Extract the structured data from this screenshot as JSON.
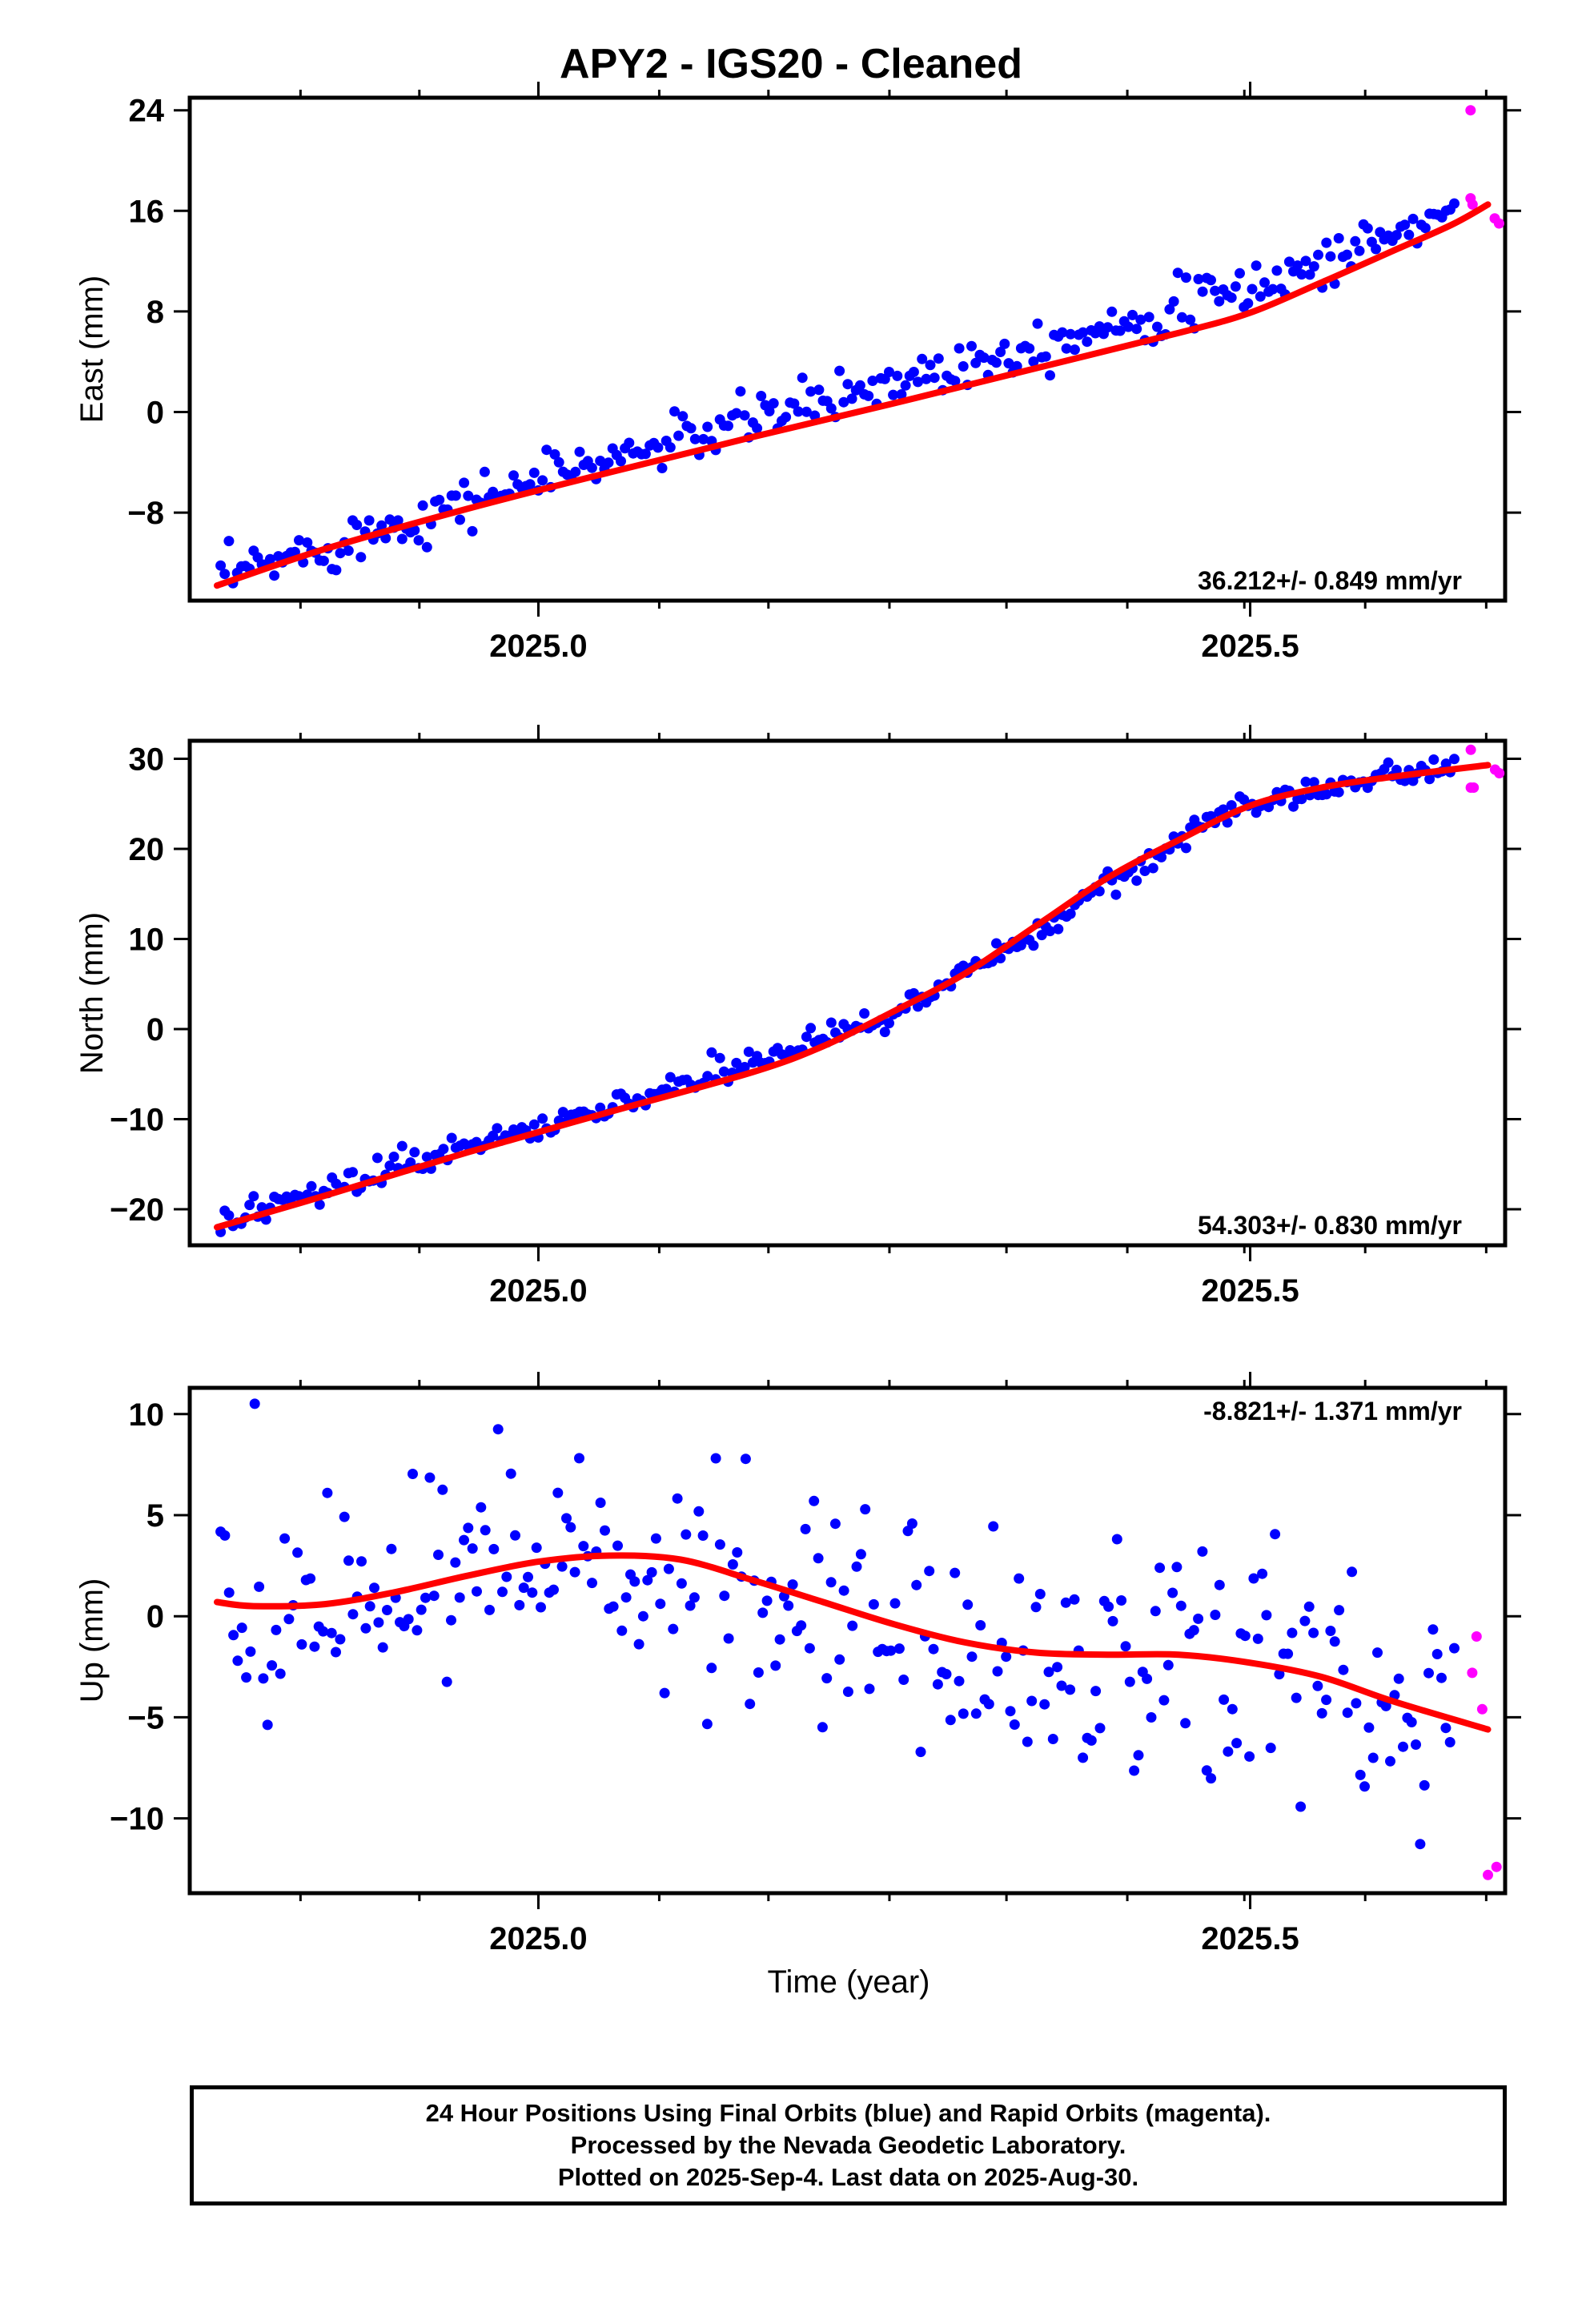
{
  "title": "APY2  - IGS20 - Cleaned",
  "xlabel": "Time (year)",
  "footer": {
    "line1": "24 Hour Positions Using Final Orbits (blue) and Rapid Orbits (magenta).",
    "line2": "Processed by the Nevada Geodetic Laboratory.",
    "line3": "Plotted on 2025-Sep-4. Last data on 2025-Aug-30."
  },
  "colors": {
    "final": "#0000ff",
    "rapid": "#ff00ff",
    "model": "#ff0000"
  },
  "chart_data": [
    {
      "type": "scatter",
      "ylabel": "East (mm)",
      "rate": "36.212+/- 0.849 mm/yr",
      "xlim": [
        2024.7551,
        2025.6791
      ],
      "ylim": [
        -15,
        25
      ],
      "xticks": [
        2025.0,
        2025.5
      ],
      "xtick_labels": [
        "2025.0",
        "2025.5"
      ],
      "yticks": [
        24,
        16,
        8,
        0,
        -8
      ],
      "ytick_labels": [
        "24",
        "16",
        "8",
        "0",
        "−8"
      ],
      "final": {
        "start": 2024.7768,
        "end": 2025.6434,
        "count": 300,
        "trend": [
          [
            2024.7768,
            -13.3
          ],
          [
            2025.0,
            -5.3
          ],
          [
            2025.25,
            2.5
          ],
          [
            2025.5,
            9.8
          ],
          [
            2025.6434,
            16.0
          ]
        ],
        "noise_mm": 1.0
      },
      "rapid": [
        [
          2025.6548,
          24.0
        ],
        [
          2025.6548,
          17.0
        ],
        [
          2025.6562,
          16.5
        ],
        [
          2025.6718,
          15.4
        ],
        [
          2025.6748,
          15.0
        ]
      ],
      "model": [
        [
          2024.7742,
          -13.8
        ],
        [
          2024.85,
          -10.9
        ],
        [
          2024.95,
          -7.7
        ],
        [
          2025.05,
          -4.8
        ],
        [
          2025.15,
          -2.0
        ],
        [
          2025.25,
          0.7
        ],
        [
          2025.35,
          3.5
        ],
        [
          2025.45,
          6.3
        ],
        [
          2025.5,
          7.9
        ],
        [
          2025.55,
          10.3
        ],
        [
          2025.6,
          12.8
        ],
        [
          2025.6416,
          14.9
        ],
        [
          2025.667,
          16.5
        ]
      ]
    },
    {
      "type": "scatter",
      "ylabel": "North (mm)",
      "rate": "54.303+/- 0.830 mm/yr",
      "xlim": [
        2024.7551,
        2025.6791
      ],
      "ylim": [
        -24,
        32
      ],
      "xticks": [
        2025.0,
        2025.5
      ],
      "xtick_labels": [
        "2025.0",
        "2025.5"
      ],
      "yticks": [
        30,
        20,
        10,
        0,
        -10,
        -20
      ],
      "ytick_labels": [
        "30",
        "20",
        "10",
        "0",
        "−10",
        "−20"
      ],
      "final": {
        "start": 2024.7768,
        "end": 2025.6434,
        "count": 300,
        "trend": [
          [
            2024.7768,
            -21.0
          ],
          [
            2024.85,
            -18.0
          ],
          [
            2024.95,
            -13.0
          ],
          [
            2025.05,
            -8.5
          ],
          [
            2025.15,
            -4.0
          ],
          [
            2025.25,
            2.0
          ],
          [
            2025.35,
            11.0
          ],
          [
            2025.45,
            21.0
          ],
          [
            2025.5,
            25.0
          ],
          [
            2025.58,
            27.5
          ],
          [
            2025.6434,
            29.0
          ]
        ],
        "noise_mm": 0.8
      },
      "rapid": [
        [
          2025.655,
          31.0
        ],
        [
          2025.655,
          26.8
        ],
        [
          2025.657,
          26.8
        ],
        [
          2025.672,
          28.8
        ],
        [
          2025.675,
          28.4
        ]
      ],
      "model": [
        [
          2024.7742,
          -22.0
        ],
        [
          2024.85,
          -18.5
        ],
        [
          2024.95,
          -13.7
        ],
        [
          2025.05,
          -9.2
        ],
        [
          2025.15,
          -4.8
        ],
        [
          2025.2,
          -1.9
        ],
        [
          2025.25,
          2.0
        ],
        [
          2025.3,
          6.2
        ],
        [
          2025.35,
          11.5
        ],
        [
          2025.4,
          16.8
        ],
        [
          2025.45,
          21.0
        ],
        [
          2025.5,
          24.8
        ],
        [
          2025.55,
          26.8
        ],
        [
          2025.6,
          28.0
        ],
        [
          2025.667,
          29.3
        ]
      ]
    },
    {
      "type": "scatter",
      "ylabel": "Up (mm)",
      "rate": "-8.821+/- 1.371 mm/yr",
      "xlim": [
        2024.7551,
        2025.6791
      ],
      "ylim": [
        -13.7,
        11.3
      ],
      "xticks": [
        2025.0,
        2025.5
      ],
      "xtick_labels": [
        "2025.0",
        "2025.5"
      ],
      "yticks": [
        10,
        5,
        0,
        -5,
        -10
      ],
      "ytick_labels": [
        "10",
        "5",
        "0",
        "−5",
        "−10"
      ],
      "final": {
        "start": 2024.7768,
        "end": 2025.6434,
        "count": 290,
        "trend": [
          [
            2024.7768,
            0.6
          ],
          [
            2024.85,
            0.8
          ],
          [
            2024.95,
            2.0
          ],
          [
            2025.05,
            3.0
          ],
          [
            2025.15,
            1.5
          ],
          [
            2025.25,
            -1.5
          ],
          [
            2025.35,
            -2.3
          ],
          [
            2025.45,
            -1.8
          ],
          [
            2025.5,
            -2.5
          ],
          [
            2025.6,
            -4.3
          ],
          [
            2025.6434,
            -5.0
          ]
        ],
        "noise_mm": 3.0
      },
      "rapid": [
        [
          2025.659,
          -1.0
        ],
        [
          2025.656,
          -2.8
        ],
        [
          2025.663,
          -4.6
        ],
        [
          2025.667,
          -12.8
        ],
        [
          2025.673,
          -12.4
        ]
      ],
      "model": [
        [
          2024.7742,
          0.7
        ],
        [
          2024.8,
          0.5
        ],
        [
          2024.85,
          0.6
        ],
        [
          2024.9,
          1.2
        ],
        [
          2024.95,
          2.0
        ],
        [
          2025.0,
          2.7
        ],
        [
          2025.05,
          3.0
        ],
        [
          2025.1,
          2.8
        ],
        [
          2025.15,
          1.8
        ],
        [
          2025.2,
          0.7
        ],
        [
          2025.25,
          -0.4
        ],
        [
          2025.3,
          -1.3
        ],
        [
          2025.35,
          -1.8
        ],
        [
          2025.4,
          -1.9
        ],
        [
          2025.45,
          -1.9
        ],
        [
          2025.5,
          -2.3
        ],
        [
          2025.55,
          -3.0
        ],
        [
          2025.6,
          -4.2
        ],
        [
          2025.667,
          -5.6
        ]
      ]
    }
  ]
}
